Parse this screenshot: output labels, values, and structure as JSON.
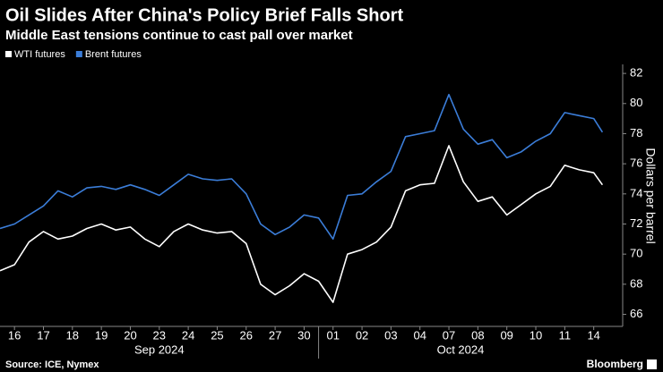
{
  "chart_data": {
    "type": "line",
    "title": "Oil Slides After China's Policy Brief Falls Short",
    "subtitle": "Middle East tensions continue to cast pall over market",
    "y_label": "Dollars per barrel",
    "source": "Source: ICE, Nymex",
    "brand": "Bloomberg",
    "month_labels": [
      "Sep 2024",
      "Oct 2024"
    ],
    "x": [
      -0.5,
      0,
      0.5,
      1,
      1.5,
      2,
      2.5,
      3,
      3.5,
      4,
      4.5,
      5,
      5.5,
      6,
      6.5,
      7,
      7.5,
      8,
      8.5,
      9,
      9.5,
      10,
      10.5,
      11,
      11.5,
      12,
      12.5,
      13,
      13.5,
      14,
      14.5,
      15,
      15.5,
      16,
      16.5,
      17,
      17.5,
      18,
      18.5,
      19,
      19.5,
      20,
      20.3
    ],
    "series": [
      {
        "name": "WTI futures",
        "color": "#ffffff",
        "values": [
          68.9,
          69.3,
          70.8,
          71.5,
          71.0,
          71.2,
          71.7,
          72.0,
          71.6,
          71.8,
          71.0,
          70.5,
          71.5,
          72.0,
          71.6,
          71.4,
          71.5,
          70.7,
          68.0,
          67.3,
          67.9,
          68.7,
          68.2,
          66.8,
          70.0,
          70.3,
          70.8,
          71.8,
          74.2,
          74.6,
          74.7,
          77.2,
          74.8,
          73.5,
          73.8,
          72.6,
          73.3,
          74.0,
          74.5,
          75.9,
          75.6,
          75.4,
          74.6
        ]
      },
      {
        "name": "Brent futures",
        "color": "#3b7dd8",
        "values": [
          71.7,
          72.0,
          72.6,
          73.2,
          74.2,
          73.8,
          74.4,
          74.5,
          74.3,
          74.6,
          74.3,
          73.9,
          74.6,
          75.3,
          75.0,
          74.9,
          75.0,
          74.0,
          72.0,
          71.3,
          71.8,
          72.6,
          72.4,
          71.0,
          73.9,
          74.0,
          74.8,
          75.5,
          77.8,
          78.0,
          78.2,
          80.6,
          78.3,
          77.3,
          77.6,
          76.4,
          76.8,
          77.5,
          78.0,
          79.4,
          79.2,
          79.0,
          78.1
        ]
      }
    ],
    "xlim": [
      -0.5,
      21
    ],
    "xticks": [
      {
        "value": 0,
        "label": "16"
      },
      {
        "value": 1,
        "label": "17"
      },
      {
        "value": 2,
        "label": "18"
      },
      {
        "value": 3,
        "label": "19"
      },
      {
        "value": 4,
        "label": "20"
      },
      {
        "value": 5,
        "label": "23"
      },
      {
        "value": 6,
        "label": "24"
      },
      {
        "value": 7,
        "label": "25"
      },
      {
        "value": 8,
        "label": "26"
      },
      {
        "value": 9,
        "label": "27"
      },
      {
        "value": 10,
        "label": "30"
      },
      {
        "value": 11,
        "label": "01"
      },
      {
        "value": 12,
        "label": "02"
      },
      {
        "value": 13,
        "label": "03"
      },
      {
        "value": 14,
        "label": "04"
      },
      {
        "value": 15,
        "label": "07"
      },
      {
        "value": 16,
        "label": "08"
      },
      {
        "value": 17,
        "label": "09"
      },
      {
        "value": 18,
        "label": "10"
      },
      {
        "value": 19,
        "label": "11"
      },
      {
        "value": 20,
        "label": "14"
      }
    ],
    "ylim": [
      65.2,
      82.6
    ],
    "yticks": [
      66,
      68,
      70,
      72,
      74,
      76,
      78,
      80,
      82
    ],
    "grid": false,
    "legend": "top-left"
  }
}
